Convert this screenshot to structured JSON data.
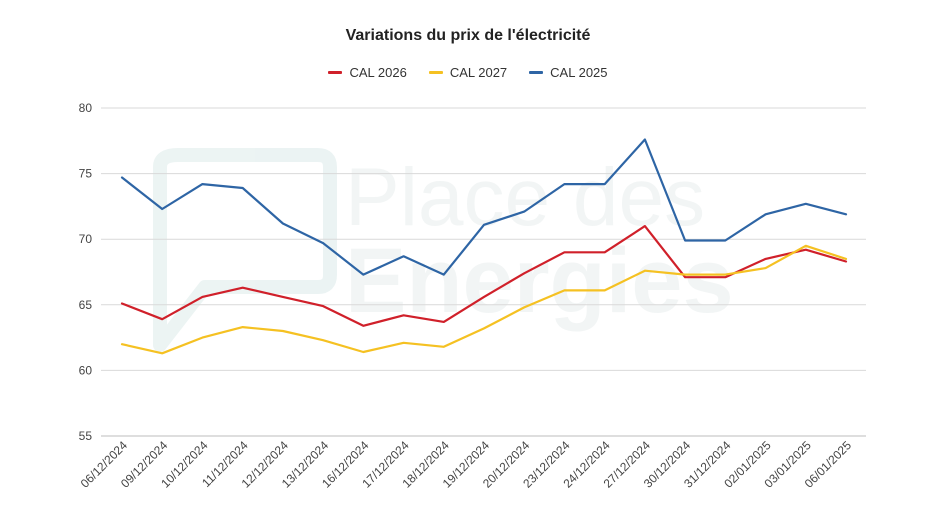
{
  "chart_data": {
    "type": "line",
    "title": "Variations du prix de l'électricité",
    "xlabel": "",
    "ylabel": "",
    "ylim": [
      55,
      80
    ],
    "yticks": [
      55,
      60,
      65,
      70,
      75,
      80
    ],
    "grid": true,
    "legend_position": "top-center",
    "categories": [
      "06/12/2024",
      "09/12/2024",
      "10/12/2024",
      "11/12/2024",
      "12/12/2024",
      "13/12/2024",
      "16/12/2024",
      "17/12/2024",
      "18/12/2024",
      "19/12/2024",
      "20/12/2024",
      "23/12/2024",
      "24/12/2024",
      "27/12/2024",
      "30/12/2024",
      "31/12/2024",
      "02/01/2025",
      "03/01/2025",
      "06/01/2025"
    ],
    "series": [
      {
        "name": "CAL 2026",
        "color": "#d0202a",
        "values": [
          65.1,
          63.9,
          65.6,
          66.3,
          65.6,
          64.9,
          63.4,
          64.2,
          63.7,
          65.6,
          67.4,
          69.0,
          69.0,
          71.0,
          67.1,
          67.1,
          68.5,
          69.2,
          68.3
        ]
      },
      {
        "name": "CAL 2027",
        "color": "#f5c122",
        "values": [
          62.0,
          61.3,
          62.5,
          63.3,
          63.0,
          62.3,
          61.4,
          62.1,
          61.8,
          63.2,
          64.8,
          66.1,
          66.1,
          67.6,
          67.3,
          67.3,
          67.8,
          69.5,
          68.5
        ]
      },
      {
        "name": "CAL 2025",
        "color": "#2e65a5",
        "values": [
          74.7,
          72.3,
          74.2,
          73.9,
          71.2,
          69.7,
          67.3,
          68.7,
          67.3,
          71.1,
          72.1,
          74.2,
          74.2,
          77.6,
          69.9,
          69.9,
          71.9,
          72.7,
          71.9
        ]
      }
    ]
  },
  "watermark": {
    "line1": "Place des",
    "line2": "Energies"
  }
}
